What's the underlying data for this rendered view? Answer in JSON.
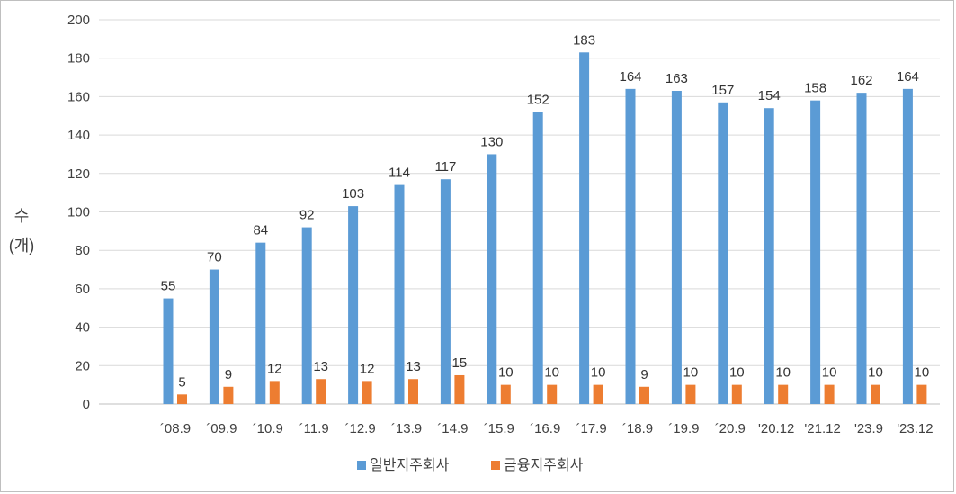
{
  "chart_data": {
    "type": "bar",
    "title": "",
    "ylabel": "수\n(개)",
    "ylabel_lines": [
      "수",
      "(개)"
    ],
    "ylim": [
      0,
      200
    ],
    "yticks": [
      0,
      20,
      40,
      60,
      80,
      100,
      120,
      140,
      160,
      180,
      200
    ],
    "grid": true,
    "legend_position": "bottom",
    "categories": [
      "´08.9",
      "´09.9",
      "´10.9",
      "´11.9",
      "´12.9",
      "´13.9",
      "´14.9",
      "´15.9",
      "´16.9",
      "´17.9",
      "´18.9",
      "´19.9",
      "´20.9",
      "'20.12",
      "'21.12",
      "'23.9",
      "'23.12"
    ],
    "series": [
      {
        "name": "일반지주회사",
        "color": "#5b9bd5",
        "values": [
          55,
          70,
          84,
          92,
          103,
          114,
          117,
          130,
          152,
          183,
          164,
          163,
          157,
          154,
          158,
          162,
          164
        ]
      },
      {
        "name": "금융지주회사",
        "color": "#ed7d31",
        "values": [
          5,
          9,
          12,
          13,
          12,
          13,
          15,
          10,
          10,
          10,
          9,
          10,
          10,
          10,
          10,
          10,
          10
        ]
      }
    ]
  }
}
